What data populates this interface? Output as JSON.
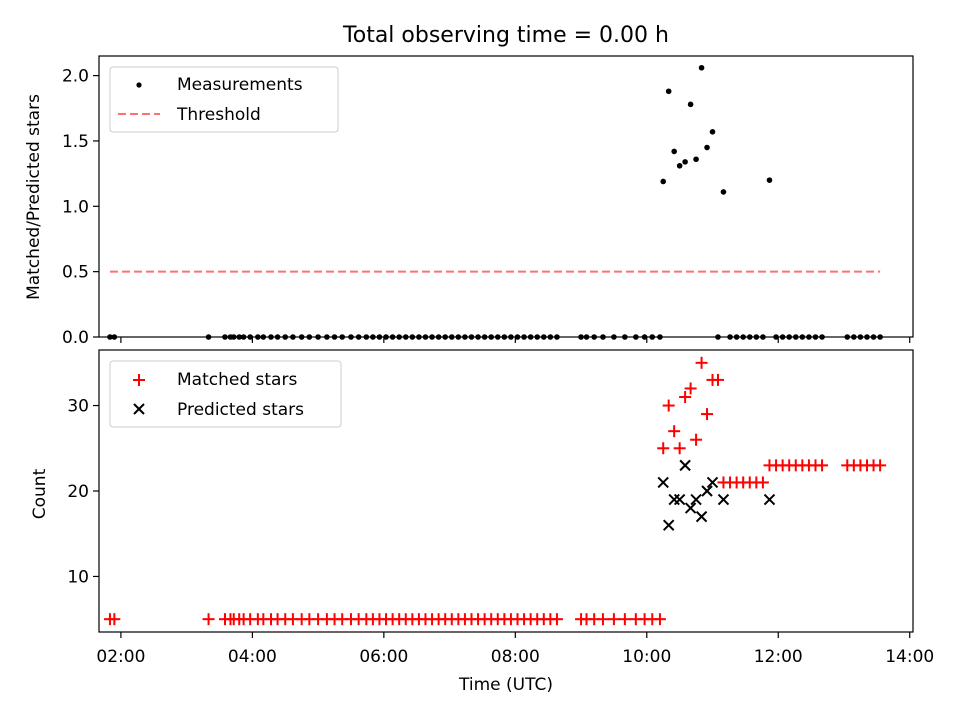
{
  "title": "Total observing time = 0.00 h",
  "chart_data": [
    {
      "type": "scatter",
      "ylabel": "Matched/Predicted stars",
      "ylim": [
        0,
        2.15
      ],
      "yticks": [
        "0.0",
        "0.5",
        "1.0",
        "1.5",
        "2.0"
      ],
      "xlim": [
        "01:40",
        "14:03"
      ],
      "legend": "top-left",
      "legend_entries": [
        "Measurements",
        "Threshold"
      ],
      "colors": {
        "measurements": "#000000",
        "threshold": "#ff7070"
      },
      "series": [
        {
          "name": "Measurements",
          "marker": "dot",
          "x": [
            "01:50",
            "01:54",
            "03:20",
            "03:35",
            "03:40",
            "03:43",
            "03:48",
            "03:52",
            "03:58",
            "04:05",
            "04:10",
            "04:17",
            "04:23",
            "04:30",
            "04:37",
            "04:45",
            "04:52",
            "05:00",
            "05:08",
            "05:15",
            "05:22",
            "05:30",
            "05:37",
            "05:44",
            "05:50",
            "05:56",
            "06:02",
            "06:08",
            "06:14",
            "06:20",
            "06:26",
            "06:32",
            "06:38",
            "06:44",
            "06:50",
            "06:56",
            "07:02",
            "07:08",
            "07:14",
            "07:20",
            "07:26",
            "07:32",
            "07:38",
            "07:44",
            "07:50",
            "07:56",
            "08:02",
            "08:08",
            "08:14",
            "08:20",
            "08:26",
            "08:32",
            "08:38",
            "09:00",
            "09:05",
            "09:12",
            "09:20",
            "09:30",
            "09:40",
            "09:50",
            "09:58",
            "10:05",
            "10:12",
            "10:15",
            "10:20",
            "10:25",
            "10:30",
            "10:35",
            "10:40",
            "10:45",
            "10:50",
            "10:55",
            "11:00",
            "11:05",
            "11:10",
            "11:16",
            "11:22",
            "11:28",
            "11:34",
            "11:40",
            "11:46",
            "11:52",
            "11:58",
            "12:04",
            "12:10",
            "12:16",
            "12:22",
            "12:28",
            "12:34",
            "12:40",
            "13:03",
            "13:09",
            "13:15",
            "13:21",
            "13:27",
            "13:33"
          ],
          "y": [
            0,
            0,
            0,
            0,
            0,
            0,
            0,
            0,
            0,
            0,
            0,
            0,
            0,
            0,
            0,
            0,
            0,
            0,
            0,
            0,
            0,
            0,
            0,
            0,
            0,
            0,
            0,
            0,
            0,
            0,
            0,
            0,
            0,
            0,
            0,
            0,
            0,
            0,
            0,
            0,
            0,
            0,
            0,
            0,
            0,
            0,
            0,
            0,
            0,
            0,
            0,
            0,
            0,
            0,
            0,
            0,
            0,
            0,
            0,
            0,
            0,
            0,
            0,
            1.19,
            1.88,
            1.42,
            1.31,
            1.34,
            1.78,
            1.36,
            2.06,
            1.45,
            1.57,
            0,
            1.11,
            0,
            0,
            0,
            0,
            0,
            0,
            1.2,
            0,
            0,
            0,
            0,
            0,
            0,
            0,
            0,
            0,
            0,
            0,
            0,
            0,
            0
          ]
        },
        {
          "name": "Threshold",
          "line": "dashed",
          "x": [
            "01:50",
            "13:33"
          ],
          "y": [
            0.5,
            0.5
          ]
        }
      ]
    },
    {
      "type": "scatter",
      "xlabel": "Time (UTC)",
      "ylabel": "Count",
      "ylim": [
        3.5,
        36.5
      ],
      "yticks": [
        "10",
        "20",
        "30"
      ],
      "xticks": [
        "02:00",
        "04:00",
        "06:00",
        "08:00",
        "10:00",
        "12:00",
        "14:00"
      ],
      "xlim": [
        "01:40",
        "14:03"
      ],
      "legend": "top-left",
      "legend_entries": [
        "Matched stars",
        "Predicted stars"
      ],
      "colors": {
        "matched": "#ff0000",
        "predicted": "#000000"
      },
      "series": [
        {
          "name": "Matched stars",
          "marker": "plus",
          "x": [
            "01:50",
            "01:54",
            "03:20",
            "03:35",
            "03:40",
            "03:43",
            "03:48",
            "03:52",
            "03:58",
            "04:05",
            "04:10",
            "04:17",
            "04:23",
            "04:30",
            "04:37",
            "04:45",
            "04:52",
            "05:00",
            "05:08",
            "05:15",
            "05:22",
            "05:30",
            "05:37",
            "05:44",
            "05:50",
            "05:56",
            "06:02",
            "06:08",
            "06:14",
            "06:20",
            "06:26",
            "06:32",
            "06:38",
            "06:44",
            "06:50",
            "06:56",
            "07:02",
            "07:08",
            "07:14",
            "07:20",
            "07:26",
            "07:32",
            "07:38",
            "07:44",
            "07:50",
            "07:56",
            "08:02",
            "08:08",
            "08:14",
            "08:20",
            "08:26",
            "08:32",
            "08:38",
            "09:00",
            "09:05",
            "09:12",
            "09:20",
            "09:30",
            "09:40",
            "09:50",
            "09:58",
            "10:05",
            "10:12",
            "10:15",
            "10:20",
            "10:25",
            "10:30",
            "10:35",
            "10:40",
            "10:45",
            "10:50",
            "10:55",
            "11:00",
            "11:05",
            "11:10",
            "11:16",
            "11:22",
            "11:28",
            "11:34",
            "11:40",
            "11:46",
            "11:52",
            "11:58",
            "12:04",
            "12:10",
            "12:16",
            "12:22",
            "12:28",
            "12:34",
            "12:40",
            "13:03",
            "13:09",
            "13:15",
            "13:21",
            "13:27",
            "13:33"
          ],
          "y": [
            5,
            5,
            5,
            5,
            5,
            5,
            5,
            5,
            5,
            5,
            5,
            5,
            5,
            5,
            5,
            5,
            5,
            5,
            5,
            5,
            5,
            5,
            5,
            5,
            5,
            5,
            5,
            5,
            5,
            5,
            5,
            5,
            5,
            5,
            5,
            5,
            5,
            5,
            5,
            5,
            5,
            5,
            5,
            5,
            5,
            5,
            5,
            5,
            5,
            5,
            5,
            5,
            5,
            5,
            5,
            5,
            5,
            5,
            5,
            5,
            5,
            5,
            5,
            25,
            30,
            27,
            25,
            31,
            32,
            26,
            35,
            29,
            33,
            33,
            21,
            21,
            21,
            21,
            21,
            21,
            21,
            23,
            23,
            23,
            23,
            23,
            23,
            23,
            23,
            23,
            23,
            23,
            23,
            23,
            23,
            23
          ]
        },
        {
          "name": "Predicted stars",
          "marker": "x",
          "x": [
            "10:15",
            "10:20",
            "10:25",
            "10:30",
            "10:35",
            "10:40",
            "10:45",
            "10:50",
            "10:55",
            "11:00",
            "11:10",
            "11:52"
          ],
          "y": [
            21,
            16,
            19,
            19,
            23,
            18,
            19,
            17,
            20,
            21,
            19,
            19
          ]
        }
      ]
    }
  ]
}
